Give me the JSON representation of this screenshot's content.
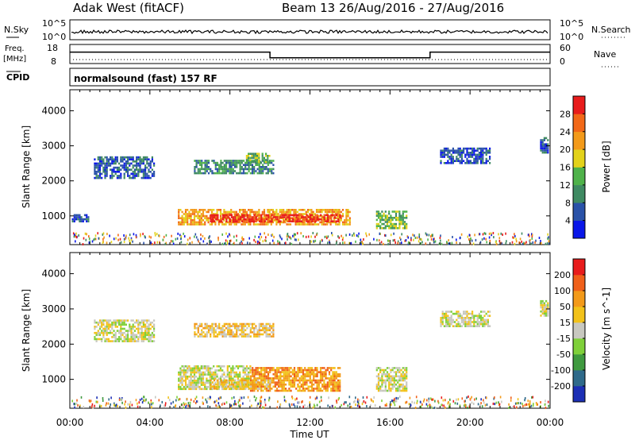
{
  "header": {
    "station": "Adak West (fitACF)",
    "beam_range": "Beam 13 26/Aug/2016 - 27/Aug/2016"
  },
  "top_panels": {
    "nsky_label": "N.Sky",
    "nsky_ticks": [
      "10^5",
      "10^0"
    ],
    "nsearch_label": "N.Search",
    "nsearch_ticks": [
      "10^5",
      "10^0"
    ],
    "freq_label": "Freq.",
    "freq_unit": "[MHz]",
    "freq_ticks": [
      "18",
      "8"
    ],
    "nave_label": "Nave",
    "nave_ticks": [
      "60",
      "0"
    ],
    "cpid_label": "CPID",
    "mode_text": "normalsound (fast) 157 RF"
  },
  "chart_data": [
    {
      "type": "heatmap",
      "title": "Power",
      "ylabel": "Slant Range [km]",
      "xlabel": "Time UT",
      "x_ticks": [
        "00:00",
        "04:00",
        "08:00",
        "12:00",
        "16:00",
        "20:00",
        "00:00"
      ],
      "y_ticks": [
        "1000",
        "2000",
        "3000",
        "4000"
      ],
      "ylim": [
        180,
        4600
      ],
      "xlim_hours": [
        0,
        24
      ],
      "colorbar": {
        "label": "Power [dB]",
        "ticks": [
          "4",
          "8",
          "12",
          "16",
          "20",
          "24",
          "28"
        ],
        "colors": [
          "#0a17e8",
          "#2a52a8",
          "#3f8a62",
          "#4fb24a",
          "#e3d21a",
          "#f39a1a",
          "#f26818",
          "#e81c1c"
        ]
      },
      "regions": [
        {
          "t0": 5.4,
          "t1": 14.0,
          "r0": 750,
          "r1": 1200,
          "level": 5
        },
        {
          "t0": 7.0,
          "t1": 13.5,
          "r0": 850,
          "r1": 1050,
          "level": 7
        },
        {
          "t0": 0.1,
          "t1": 0.9,
          "r0": 850,
          "r1": 1050,
          "level": 1
        },
        {
          "t0": 1.2,
          "t1": 4.2,
          "r0": 2100,
          "r1": 2700,
          "level": 1
        },
        {
          "t0": 6.2,
          "t1": 10.2,
          "r0": 2200,
          "r1": 2600,
          "level": 2
        },
        {
          "t0": 8.8,
          "t1": 10.0,
          "r0": 2550,
          "r1": 2800,
          "level": 3
        },
        {
          "t0": 15.3,
          "t1": 16.8,
          "r0": 650,
          "r1": 1150,
          "level": 3
        },
        {
          "t0": 18.5,
          "t1": 21.0,
          "r0": 2500,
          "r1": 2950,
          "level": 1
        },
        {
          "t0": 23.5,
          "t1": 23.9,
          "r0": 2800,
          "r1": 3250,
          "level": 1
        }
      ]
    },
    {
      "type": "heatmap",
      "title": "Velocity",
      "ylabel": "Slant Range [km]",
      "xlabel": "Time UT",
      "x_ticks": [
        "00:00",
        "04:00",
        "08:00",
        "12:00",
        "16:00",
        "20:00",
        "00:00"
      ],
      "y_ticks": [
        "1000",
        "2000",
        "3000",
        "4000"
      ],
      "ylim": [
        180,
        4600
      ],
      "xlim_hours": [
        0,
        24
      ],
      "colorbar": {
        "label": "Velocity [m s^-1]",
        "ticks": [
          "200",
          "100",
          "50",
          "15",
          "-15",
          "-50",
          "-100",
          "-200"
        ],
        "colors": [
          "#1c2fb5",
          "#2f6a8a",
          "#3f9a3f",
          "#7fd03a",
          "#c8c8c0",
          "#f2c21a",
          "#f39a1a",
          "#f0601a",
          "#e81c1c"
        ]
      },
      "regions": [
        {
          "t0": 5.4,
          "t1": 9.0,
          "r0": 750,
          "r1": 1400,
          "level": 4
        },
        {
          "t0": 9.0,
          "t1": 13.5,
          "r0": 700,
          "r1": 1350,
          "level": 6
        },
        {
          "t0": 7.0,
          "t1": 10.0,
          "r0": 750,
          "r1": 1000,
          "level": 5
        },
        {
          "t0": 1.2,
          "t1": 4.2,
          "r0": 2100,
          "r1": 2700,
          "level": 4
        },
        {
          "t0": 6.2,
          "t1": 10.2,
          "r0": 2200,
          "r1": 2600,
          "level": 5
        },
        {
          "t0": 15.3,
          "t1": 16.8,
          "r0": 650,
          "r1": 1350,
          "level": 4
        },
        {
          "t0": 18.5,
          "t1": 21.0,
          "r0": 2500,
          "r1": 2950,
          "level": 4
        },
        {
          "t0": 23.5,
          "t1": 23.9,
          "r0": 2800,
          "r1": 3250,
          "level": 4
        }
      ]
    }
  ],
  "freq_series": {
    "x_hours": [
      0,
      10,
      10,
      18,
      18,
      24
    ],
    "freq": [
      14,
      14,
      11,
      11,
      14,
      14
    ]
  }
}
